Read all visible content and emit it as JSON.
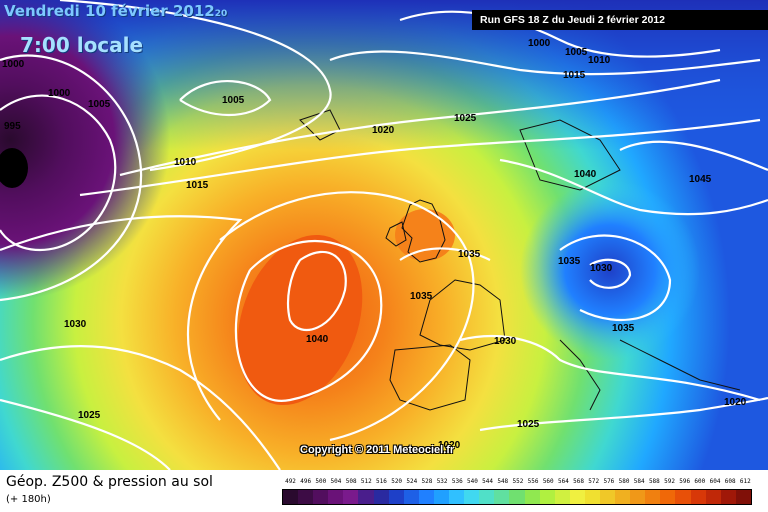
{
  "header": {
    "date": "Vendredi 10 février 2012",
    "date_suffix": "20",
    "time": "7:00 locale",
    "run": "Run GFS 18 Z du Jeudi 2 février 2012"
  },
  "map": {
    "isobar_labels": [
      "995",
      "1000",
      "1000",
      "1005",
      "1005",
      "1010",
      "1015",
      "1020",
      "1025",
      "1000",
      "1005",
      "1010",
      "1015",
      "1040",
      "1045",
      "1035",
      "1030",
      "1035",
      "1035",
      "1040",
      "1030",
      "1030",
      "1025",
      "1025",
      "1035",
      "1020",
      "1020"
    ],
    "copyright": "Copyright © 2011 Meteociel.fr"
  },
  "footer": {
    "title": "Géop. Z500 & pression au sol",
    "subtitle": "(+ 180h)",
    "scale_labels": [
      "492",
      "496",
      "500",
      "504",
      "508",
      "512",
      "516",
      "520",
      "524",
      "528",
      "532",
      "536",
      "540",
      "544",
      "548",
      "552",
      "556",
      "560",
      "564",
      "568",
      "572",
      "576",
      "580",
      "584",
      "588",
      "592",
      "596",
      "600",
      "604",
      "608",
      "612"
    ],
    "scale_colors": [
      "#2a0a2e",
      "#3d0c45",
      "#520e5e",
      "#6a1278",
      "#7a1a8c",
      "#4a1e8c",
      "#2a2aa0",
      "#1e40c8",
      "#1e60e6",
      "#2080ff",
      "#20a0ff",
      "#30c0ff",
      "#40d8f0",
      "#50e0c8",
      "#60e0a0",
      "#70e070",
      "#90e850",
      "#b0f040",
      "#d0f040",
      "#f0f040",
      "#f0e030",
      "#f0c828",
      "#f0b020",
      "#f09818",
      "#f08010",
      "#f06808",
      "#e85008",
      "#d83808",
      "#c02808",
      "#a01808",
      "#801008"
    ]
  }
}
